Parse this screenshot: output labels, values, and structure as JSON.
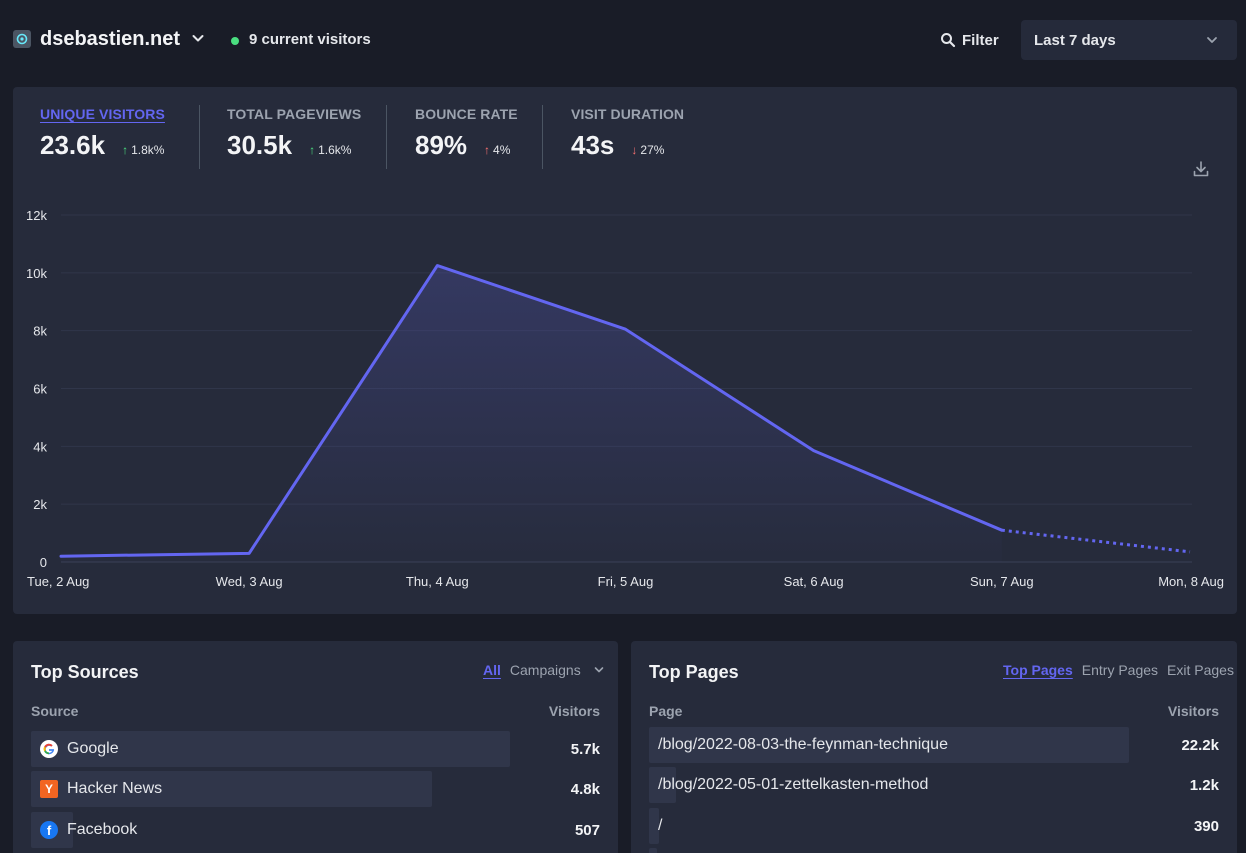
{
  "header": {
    "site_name": "dsebastien.net",
    "current_visitors": "9 current visitors",
    "filter_label": "Filter",
    "period": "Last 7 days"
  },
  "stats": [
    {
      "label": "UNIQUE VISITORS",
      "value": "23.6k",
      "change": "1.8k%",
      "direction": "up",
      "active": true
    },
    {
      "label": "TOTAL PAGEVIEWS",
      "value": "30.5k",
      "change": "1.6k%",
      "direction": "up",
      "active": false
    },
    {
      "label": "BOUNCE RATE",
      "value": "89%",
      "change": "4%",
      "direction": "up",
      "active": false
    },
    {
      "label": "VISIT DURATION",
      "value": "43s",
      "change": "27%",
      "direction": "down",
      "active": false
    }
  ],
  "chart_data": {
    "type": "area",
    "categories": [
      "Tue, 2 Aug",
      "Wed, 3 Aug",
      "Thu, 4 Aug",
      "Fri, 5 Aug",
      "Sat, 6 Aug",
      "Sun, 7 Aug",
      "Mon, 8 Aug"
    ],
    "series": [
      {
        "values": [
          200,
          300,
          10250,
          8050,
          3850,
          1100,
          350
        ]
      }
    ],
    "y_ticks": [
      "0",
      "2k",
      "4k",
      "6k",
      "8k",
      "10k",
      "12k"
    ],
    "ylim": [
      0,
      12000
    ],
    "grid": true,
    "last_segment_dashed": true,
    "line_color": "#6366f1"
  },
  "top_sources": {
    "title": "Top Sources",
    "tabs": [
      "All",
      "Campaigns"
    ],
    "active_tab": "All",
    "col_source": "Source",
    "col_visitors": "Visitors",
    "rows": [
      {
        "name": "Google",
        "visitors": "5.7k",
        "share": 0.92,
        "icon": "google-icon"
      },
      {
        "name": "Hacker News",
        "visitors": "4.8k",
        "share": 0.77,
        "icon": "hacker-news-icon"
      },
      {
        "name": "Facebook",
        "visitors": "507",
        "share": 0.08,
        "icon": "facebook-icon"
      }
    ]
  },
  "top_pages": {
    "title": "Top Pages",
    "tabs": [
      "Top Pages",
      "Entry Pages",
      "Exit Pages"
    ],
    "active_tab": "Top Pages",
    "col_page": "Page",
    "col_visitors": "Visitors",
    "rows": [
      {
        "name": "/blog/2022-08-03-the-feynman-technique",
        "visitors": "22.2k",
        "share": 0.92
      },
      {
        "name": "/blog/2022-05-01-zettelkasten-method",
        "visitors": "1.2k",
        "share": 0.05
      },
      {
        "name": "/",
        "visitors": "390",
        "share": 0.02
      }
    ]
  }
}
